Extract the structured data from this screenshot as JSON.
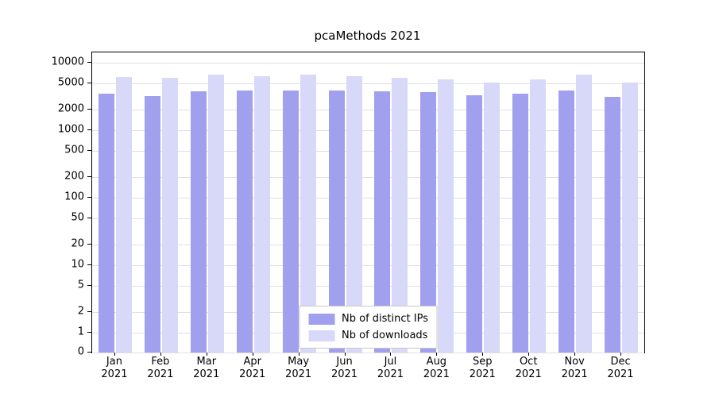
{
  "chart_data": {
    "type": "bar",
    "title": "pcaMethods 2021",
    "categories": [
      "Jan",
      "Feb",
      "Mar",
      "Apr",
      "May",
      "Jun",
      "Jul",
      "Aug",
      "Sep",
      "Oct",
      "Nov",
      "Dec"
    ],
    "x_year_label": "2021",
    "series": [
      {
        "name": "Nb of distinct IPs",
        "color": "#a0a0ef",
        "values": [
          3500,
          3200,
          3800,
          3900,
          3900,
          3900,
          3800,
          3700,
          3300,
          3500,
          3900,
          3100
        ]
      },
      {
        "name": "Nb of downloads",
        "color": "#d8d8f8",
        "values": [
          6100,
          6000,
          6600,
          6300,
          6600,
          6300,
          5900,
          5700,
          5100,
          5600,
          6700,
          5100
        ]
      }
    ],
    "yticks": [
      0,
      1,
      2,
      5,
      10,
      20,
      50,
      100,
      200,
      500,
      1000,
      2000,
      5000,
      10000
    ],
    "yscale": "symlog",
    "ylim": [
      0,
      10000
    ],
    "xlabel": "",
    "ylabel": "",
    "grid": true,
    "legend_position": "lower center"
  }
}
